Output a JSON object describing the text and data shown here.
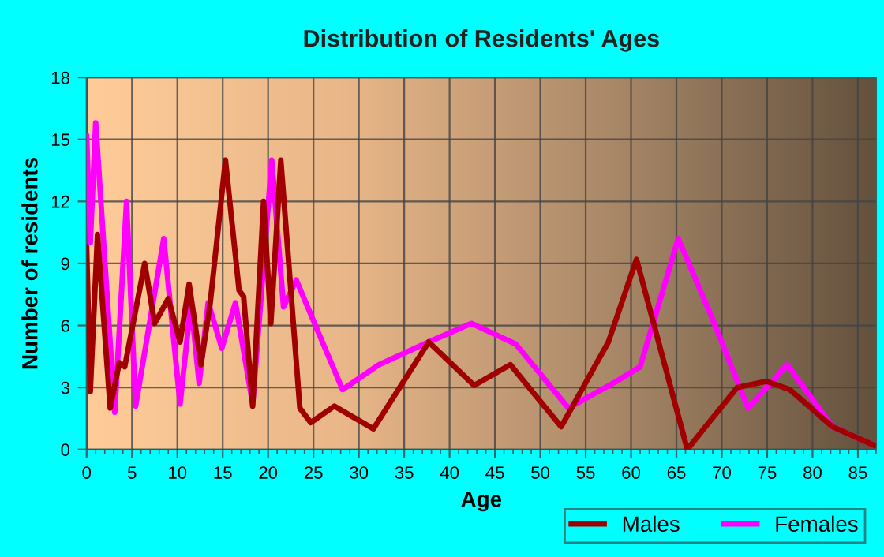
{
  "chart_data": {
    "type": "line",
    "title": "Distribution of Residents' Ages",
    "xlabel": "Age",
    "ylabel": "Number of residents",
    "xlim": [
      0,
      87
    ],
    "ylim": [
      0,
      18
    ],
    "xticks": [
      0,
      5,
      10,
      15,
      20,
      25,
      30,
      35,
      40,
      45,
      50,
      55,
      60,
      65,
      70,
      75,
      80,
      85
    ],
    "yticks": [
      0,
      3,
      6,
      9,
      12,
      15,
      18
    ],
    "grid": true,
    "legend": "bottom right",
    "line_style": "solid",
    "marker": "none",
    "series": [
      {
        "name": "Males",
        "color": "#a00000",
        "x": [
          0,
          0.4,
          1.2,
          2.6,
          3.6,
          4.2,
          6.4,
          7.5,
          9.0,
          10.3,
          11.3,
          12.6,
          13.6,
          15.3,
          16.8,
          17.3,
          18.3,
          19.5,
          20.3,
          21.4,
          23.5,
          24.7,
          27.3,
          31.6,
          37.7,
          42.7,
          46.7,
          52.3,
          57.5,
          60.6,
          66.2,
          68.2,
          71.7,
          74.9,
          77.5,
          82.2,
          86.8
        ],
        "values": [
          9.8,
          2.8,
          10.4,
          2.0,
          4.2,
          4.0,
          9.0,
          6.1,
          7.3,
          5.2,
          8.0,
          4.1,
          7.0,
          14.0,
          7.7,
          7.4,
          2.1,
          12.0,
          6.1,
          14.0,
          2.0,
          1.3,
          2.1,
          1.0,
          5.2,
          3.1,
          4.1,
          1.1,
          5.2,
          9.2,
          0.0,
          1.1,
          3.0,
          3.3,
          2.9,
          1.1,
          0.2
        ]
      },
      {
        "name": "Females",
        "color": "#ff00ff",
        "x": [
          0,
          0.4,
          1.0,
          3.1,
          4.4,
          5.4,
          8.5,
          10.3,
          11.5,
          12.4,
          13.4,
          14.9,
          16.4,
          18.3,
          20.4,
          21.7,
          23.1,
          28.2,
          32.2,
          37.7,
          42.4,
          47.3,
          53.1,
          58.4,
          61.0,
          65.2,
          68.8,
          72.9,
          77.2,
          82.2,
          86.8
        ],
        "values": [
          15.2,
          10.0,
          15.8,
          1.8,
          12.0,
          2.1,
          10.2,
          2.2,
          7.1,
          3.2,
          7.1,
          4.9,
          7.1,
          2.2,
          14.0,
          6.9,
          8.2,
          2.9,
          4.1,
          5.2,
          6.1,
          5.1,
          2.0,
          3.3,
          4.0,
          10.2,
          6.5,
          2.0,
          4.1,
          1.1,
          0.2
        ]
      }
    ]
  }
}
